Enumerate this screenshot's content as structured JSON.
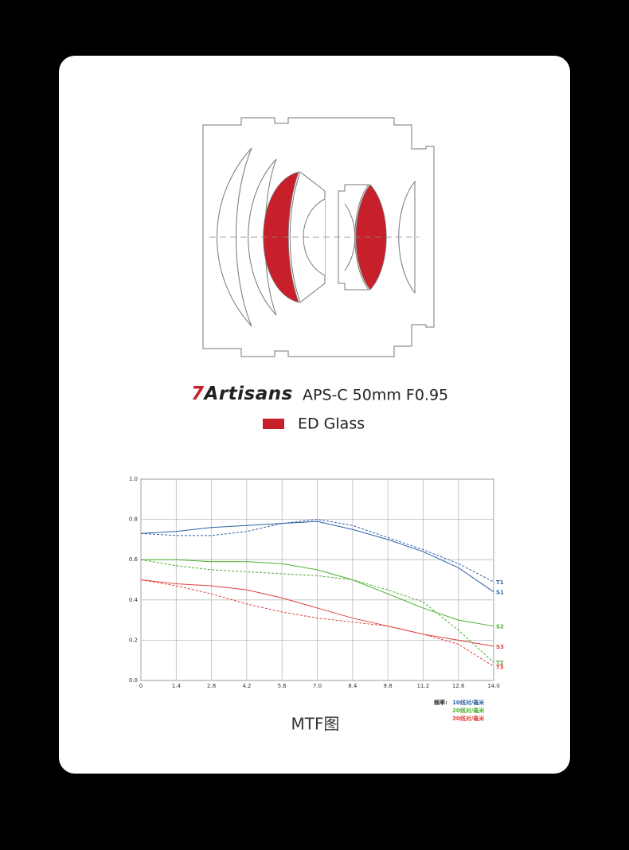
{
  "lens": {
    "brand": "7Artisans",
    "model": "APS-C 50mm F0.95",
    "legend": {
      "label": "ED Glass",
      "color": "#c8202a"
    }
  },
  "chart_data": {
    "type": "line",
    "title": "MTF图",
    "x": [
      0,
      1.4,
      2.8,
      4.2,
      5.6,
      {
        "value": 7,
        "label": "7.0"
      },
      8.4,
      9.8,
      11.2,
      12.6,
      {
        "value": 14,
        "label": "14.0"
      }
    ],
    "xlim": [
      0,
      14
    ],
    "xticks": [
      0,
      1.4,
      2.8,
      4.2,
      5.6,
      {
        "value": 7,
        "label": "7.0"
      },
      8.4,
      9.8,
      11.2,
      12.6,
      {
        "value": 14,
        "label": "14.0"
      }
    ],
    "ylim": [
      0,
      1
    ],
    "yticks": [
      {
        "value": 0,
        "label": "0.0"
      },
      0.2,
      0.4,
      0.6,
      0.8,
      {
        "value": 1,
        "label": "1.0"
      }
    ],
    "grid": true,
    "series": [
      {
        "name": "T1",
        "color": "#2f5fa6",
        "style": "dashed",
        "values": [
          0.73,
          0.72,
          0.72,
          0.74,
          0.78,
          0.8,
          0.77,
          0.71,
          0.65,
          0.58,
          0.49
        ]
      },
      {
        "name": "S1",
        "color": "#2f5fa6",
        "style": "solid",
        "values": [
          0.73,
          0.74,
          0.76,
          0.77,
          0.78,
          0.79,
          0.75,
          0.7,
          0.64,
          0.56,
          0.44
        ]
      },
      {
        "name": "S2",
        "color": "#4caf2f",
        "style": "solid",
        "values": [
          0.6,
          0.6,
          0.59,
          0.59,
          0.58,
          0.55,
          0.5,
          0.43,
          0.36,
          0.3,
          0.27
        ]
      },
      {
        "name": "S3",
        "color": "#e0403a",
        "style": "solid",
        "values": [
          0.5,
          0.48,
          0.47,
          0.45,
          0.41,
          0.36,
          0.31,
          0.27,
          0.23,
          0.2,
          0.17
        ]
      },
      {
        "name": "T2",
        "color": "#4caf2f",
        "style": "dashed",
        "values": [
          0.6,
          0.57,
          0.55,
          0.54,
          0.53,
          0.52,
          0.5,
          0.45,
          0.39,
          0.25,
          0.09
        ]
      },
      {
        "name": "T3",
        "color": "#e0403a",
        "style": "dashed",
        "values": [
          0.5,
          0.47,
          0.43,
          0.38,
          0.34,
          0.31,
          0.29,
          0.27,
          0.23,
          0.18,
          0.07
        ]
      }
    ],
    "legend_title": "频率:",
    "legend_items": [
      {
        "label": "10线对/毫米",
        "color": "#2f5fa6"
      },
      {
        "label": "20线对/毫米",
        "color": "#4caf2f"
      },
      {
        "label": "30线对/毫米",
        "color": "#e0403a"
      }
    ]
  }
}
